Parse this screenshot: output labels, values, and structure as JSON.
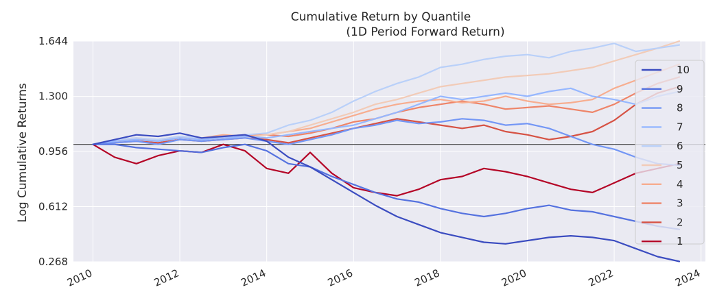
{
  "chart_data": {
    "type": "line",
    "title": "Cumulative Return by Quantile",
    "subtitle": "(1D Period Forward Return)",
    "xlabel": "",
    "ylabel": "Log Cumulative Returns",
    "x_ticks": [
      "2010",
      "2012",
      "2014",
      "2016",
      "2018",
      "2020",
      "2022",
      "2024"
    ],
    "y_ticks": [
      "0.268",
      "0.612",
      "0.956",
      "1.300",
      "1.644"
    ],
    "xlim": [
      2009.55,
      2024.1
    ],
    "ylim": [
      0.268,
      1.644
    ],
    "grid": true,
    "background": "#eaeaf2",
    "legend_position": "right",
    "baseline": 1.0,
    "series": [
      {
        "name": "10",
        "color": "#3b4cc0",
        "x": [
          2010,
          2010.5,
          2011,
          2011.5,
          2012,
          2012.5,
          2013,
          2013.5,
          2014,
          2014.5,
          2015,
          2015.5,
          2016,
          2016.5,
          2017,
          2017.5,
          2018,
          2018.5,
          2019,
          2019.5,
          2020,
          2020.5,
          2021,
          2021.5,
          2022,
          2022.5,
          2023,
          2023.5
        ],
        "values": [
          1.0,
          1.03,
          1.06,
          1.05,
          1.07,
          1.04,
          1.05,
          1.06,
          1.02,
          0.92,
          0.86,
          0.78,
          0.7,
          0.62,
          0.55,
          0.5,
          0.45,
          0.42,
          0.39,
          0.38,
          0.4,
          0.42,
          0.43,
          0.42,
          0.4,
          0.35,
          0.3,
          0.27
        ]
      },
      {
        "name": "9",
        "color": "#5572df",
        "x": [
          2010,
          2010.5,
          2011,
          2011.5,
          2012,
          2012.5,
          2013,
          2013.5,
          2014,
          2014.5,
          2015,
          2015.5,
          2016,
          2016.5,
          2017,
          2017.5,
          2018,
          2018.5,
          2019,
          2019.5,
          2020,
          2020.5,
          2021,
          2021.5,
          2022,
          2022.5,
          2023,
          2023.5
        ],
        "values": [
          1.0,
          1.0,
          0.98,
          0.97,
          0.96,
          0.95,
          0.98,
          1.0,
          0.96,
          0.88,
          0.86,
          0.8,
          0.75,
          0.7,
          0.66,
          0.64,
          0.6,
          0.57,
          0.55,
          0.57,
          0.6,
          0.62,
          0.59,
          0.58,
          0.55,
          0.52,
          0.49,
          0.47
        ]
      },
      {
        "name": "8",
        "color": "#7396f5",
        "x": [
          2010,
          2010.5,
          2011,
          2011.5,
          2012,
          2012.5,
          2013,
          2013.5,
          2014,
          2014.5,
          2015,
          2015.5,
          2016,
          2016.5,
          2017,
          2017.5,
          2018,
          2018.5,
          2019,
          2019.5,
          2020,
          2020.5,
          2021,
          2021.5,
          2022,
          2022.5,
          2023,
          2023.5
        ],
        "values": [
          1.0,
          1.01,
          1.02,
          1.0,
          1.03,
          1.02,
          1.03,
          1.04,
          1.02,
          1.0,
          1.03,
          1.06,
          1.1,
          1.12,
          1.15,
          1.13,
          1.14,
          1.16,
          1.15,
          1.12,
          1.13,
          1.1,
          1.05,
          1.0,
          0.97,
          0.92,
          0.88,
          0.87
        ]
      },
      {
        "name": "7",
        "color": "#96b7ff",
        "x": [
          2010,
          2010.5,
          2011,
          2011.5,
          2012,
          2012.5,
          2013,
          2013.5,
          2014,
          2014.5,
          2015,
          2015.5,
          2016,
          2016.5,
          2017,
          2017.5,
          2018,
          2018.5,
          2019,
          2019.5,
          2020,
          2020.5,
          2021,
          2021.5,
          2022,
          2022.5,
          2023,
          2023.5
        ],
        "values": [
          1.0,
          1.02,
          1.03,
          1.02,
          1.04,
          1.03,
          1.04,
          1.05,
          1.04,
          1.06,
          1.08,
          1.1,
          1.12,
          1.16,
          1.2,
          1.25,
          1.3,
          1.28,
          1.3,
          1.32,
          1.3,
          1.33,
          1.35,
          1.3,
          1.28,
          1.25,
          1.3,
          1.33
        ]
      },
      {
        "name": "6",
        "color": "#b9d0f9",
        "x": [
          2010,
          2010.5,
          2011,
          2011.5,
          2012,
          2012.5,
          2013,
          2013.5,
          2014,
          2014.5,
          2015,
          2015.5,
          2016,
          2016.5,
          2017,
          2017.5,
          2018,
          2018.5,
          2019,
          2019.5,
          2020,
          2020.5,
          2021,
          2021.5,
          2022,
          2022.5,
          2023,
          2023.5
        ],
        "values": [
          1.0,
          1.03,
          1.04,
          1.03,
          1.05,
          1.04,
          1.05,
          1.06,
          1.07,
          1.12,
          1.15,
          1.2,
          1.27,
          1.33,
          1.38,
          1.42,
          1.48,
          1.5,
          1.53,
          1.55,
          1.56,
          1.54,
          1.58,
          1.6,
          1.63,
          1.58,
          1.6,
          1.62
        ]
      },
      {
        "name": "5",
        "color": "#f2cbb7",
        "x": [
          2010,
          2010.5,
          2011,
          2011.5,
          2012,
          2012.5,
          2013,
          2013.5,
          2014,
          2014.5,
          2015,
          2015.5,
          2016,
          2016.5,
          2017,
          2017.5,
          2018,
          2018.5,
          2019,
          2019.5,
          2020,
          2020.5,
          2021,
          2021.5,
          2022,
          2022.5,
          2023,
          2023.5
        ],
        "values": [
          1.0,
          1.02,
          1.03,
          1.02,
          1.04,
          1.03,
          1.04,
          1.04,
          1.06,
          1.08,
          1.12,
          1.16,
          1.2,
          1.25,
          1.28,
          1.32,
          1.36,
          1.38,
          1.4,
          1.42,
          1.43,
          1.44,
          1.46,
          1.48,
          1.52,
          1.56,
          1.6,
          1.644
        ]
      },
      {
        "name": "4",
        "color": "#f7ad8f",
        "x": [
          2010,
          2010.5,
          2011,
          2011.5,
          2012,
          2012.5,
          2013,
          2013.5,
          2014,
          2014.5,
          2015,
          2015.5,
          2016,
          2016.5,
          2017,
          2017.5,
          2018,
          2018.5,
          2019,
          2019.5,
          2020,
          2020.5,
          2021,
          2021.5,
          2022,
          2022.5,
          2023,
          2023.5
        ],
        "values": [
          1.0,
          1.03,
          1.04,
          1.03,
          1.05,
          1.04,
          1.06,
          1.05,
          1.06,
          1.08,
          1.1,
          1.14,
          1.18,
          1.22,
          1.25,
          1.27,
          1.28,
          1.26,
          1.27,
          1.3,
          1.27,
          1.25,
          1.26,
          1.28,
          1.35,
          1.4,
          1.45,
          1.5
        ]
      },
      {
        "name": "3",
        "color": "#ee8468",
        "x": [
          2010,
          2010.5,
          2011,
          2011.5,
          2012,
          2012.5,
          2013,
          2013.5,
          2014,
          2014.5,
          2015,
          2015.5,
          2016,
          2016.5,
          2017,
          2017.5,
          2018,
          2018.5,
          2019,
          2019.5,
          2020,
          2020.5,
          2021,
          2021.5,
          2022,
          2022.5,
          2023,
          2023.5
        ],
        "values": [
          1.0,
          1.02,
          1.03,
          1.03,
          1.04,
          1.04,
          1.05,
          1.06,
          1.06,
          1.05,
          1.07,
          1.1,
          1.14,
          1.16,
          1.2,
          1.23,
          1.25,
          1.27,
          1.25,
          1.22,
          1.23,
          1.24,
          1.22,
          1.2,
          1.25,
          1.32,
          1.38,
          1.42
        ]
      },
      {
        "name": "2",
        "color": "#d65244",
        "x": [
          2010,
          2010.5,
          2011,
          2011.5,
          2012,
          2012.5,
          2013,
          2013.5,
          2014,
          2014.5,
          2015,
          2015.5,
          2016,
          2016.5,
          2017,
          2017.5,
          2018,
          2018.5,
          2019,
          2019.5,
          2020,
          2020.5,
          2021,
          2021.5,
          2022,
          2022.5,
          2023,
          2023.5
        ],
        "values": [
          1.0,
          1.01,
          1.02,
          1.01,
          1.03,
          1.02,
          1.03,
          1.04,
          1.03,
          1.01,
          1.04,
          1.07,
          1.1,
          1.13,
          1.16,
          1.14,
          1.12,
          1.1,
          1.12,
          1.08,
          1.06,
          1.03,
          1.05,
          1.08,
          1.15,
          1.25,
          1.32,
          1.36
        ]
      },
      {
        "name": "1",
        "color": "#b40426",
        "x": [
          2010,
          2010.5,
          2011,
          2011.5,
          2012,
          2012.5,
          2013,
          2013.5,
          2014,
          2014.5,
          2015,
          2015.5,
          2016,
          2016.5,
          2017,
          2017.5,
          2018,
          2018.5,
          2019,
          2019.5,
          2020,
          2020.5,
          2021,
          2021.5,
          2022,
          2022.5,
          2023,
          2023.5
        ],
        "values": [
          1.0,
          0.92,
          0.88,
          0.93,
          0.96,
          0.95,
          1.0,
          0.96,
          0.85,
          0.82,
          0.95,
          0.82,
          0.73,
          0.7,
          0.68,
          0.72,
          0.78,
          0.8,
          0.85,
          0.83,
          0.8,
          0.76,
          0.72,
          0.7,
          0.76,
          0.82,
          0.85,
          0.88
        ]
      }
    ]
  }
}
